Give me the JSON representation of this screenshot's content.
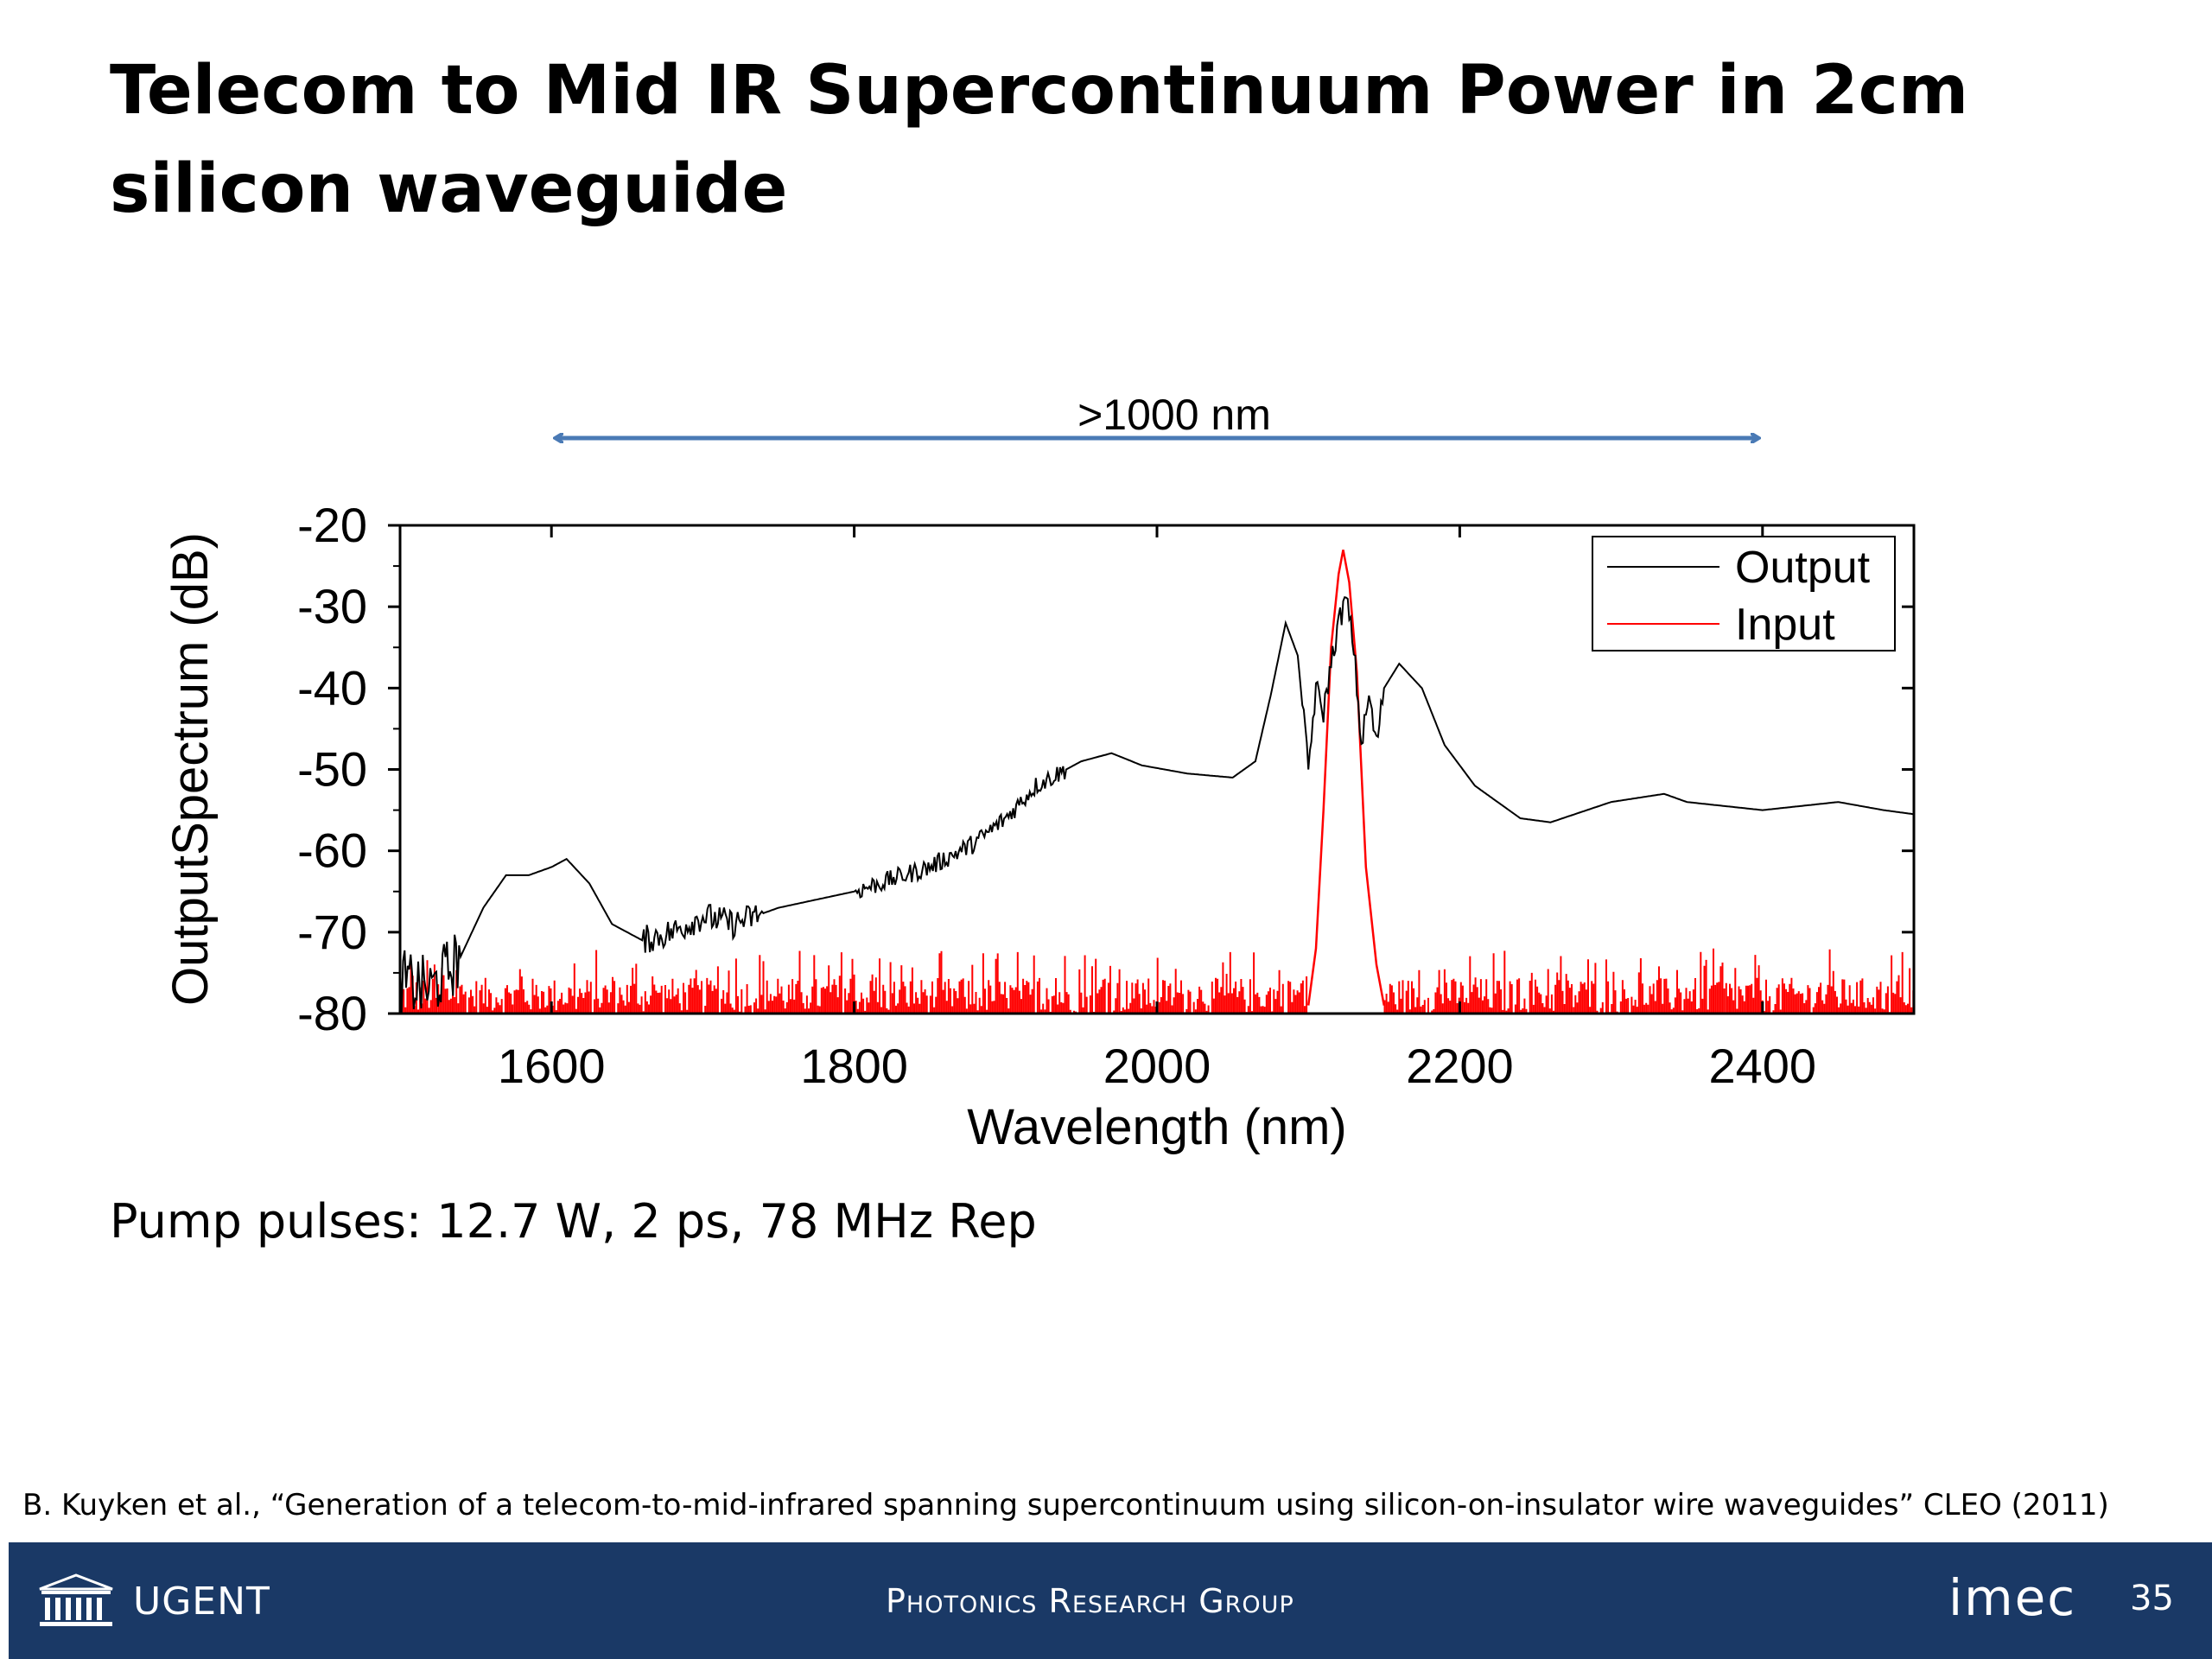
{
  "slide": {
    "title": "Telecom to Mid IR Supercontinuum Power in 2cm silicon waveguide",
    "pump_text": "Pump pulses: 12.7 W, 2 ps, 78 MHz Rep",
    "citation": "B. Kuyken et al., “Generation of a telecom-to-mid-infrared spanning supercontinuum using silicon-on-insulator wire waveguides” CLEO (2011)",
    "span_label": ">1000 nm",
    "span_range": [
      1600,
      2400
    ]
  },
  "footer": {
    "ugent_label": "UGENT",
    "group_label": "Photonics Research Group",
    "imec_label": "imec",
    "page_number": "35"
  },
  "chart_data": {
    "type": "line",
    "xlabel": "Wavelength (nm)",
    "ylabel": "OutputSpectrum (dB)",
    "xlim": [
      1500,
      2500
    ],
    "ylim": [
      -80,
      -20
    ],
    "xticks": [
      1600,
      1800,
      2000,
      2200,
      2400
    ],
    "yticks": [
      -20,
      -30,
      -40,
      -50,
      -60,
      -70,
      -80
    ],
    "legend_position": "top-right",
    "series": [
      {
        "name": "Output",
        "color": "#000000",
        "points": [
          [
            1500,
            -76
          ],
          [
            1520,
            -77
          ],
          [
            1540,
            -73
          ],
          [
            1555,
            -67
          ],
          [
            1570,
            -63
          ],
          [
            1585,
            -63
          ],
          [
            1600,
            -62
          ],
          [
            1610,
            -61
          ],
          [
            1625,
            -64
          ],
          [
            1640,
            -69
          ],
          [
            1660,
            -71
          ],
          [
            1680,
            -70
          ],
          [
            1700,
            -68
          ],
          [
            1720,
            -69
          ],
          [
            1750,
            -67
          ],
          [
            1800,
            -65
          ],
          [
            1850,
            -62
          ],
          [
            1880,
            -59
          ],
          [
            1900,
            -56
          ],
          [
            1920,
            -52
          ],
          [
            1950,
            -49
          ],
          [
            1970,
            -48
          ],
          [
            1990,
            -49.5
          ],
          [
            2020,
            -50.5
          ],
          [
            2050,
            -51
          ],
          [
            2065,
            -49
          ],
          [
            2075,
            -41
          ],
          [
            2085,
            -32
          ],
          [
            2093,
            -36
          ],
          [
            2100,
            -50
          ],
          [
            2105,
            -40
          ],
          [
            2110,
            -43
          ],
          [
            2115,
            -37
          ],
          [
            2120,
            -32
          ],
          [
            2125,
            -29
          ],
          [
            2130,
            -35
          ],
          [
            2135,
            -47
          ],
          [
            2140,
            -41
          ],
          [
            2145,
            -47
          ],
          [
            2150,
            -40
          ],
          [
            2160,
            -37
          ],
          [
            2175,
            -40
          ],
          [
            2190,
            -47
          ],
          [
            2210,
            -52
          ],
          [
            2240,
            -56
          ],
          [
            2260,
            -56.5
          ],
          [
            2300,
            -54
          ],
          [
            2335,
            -53
          ],
          [
            2350,
            -54
          ],
          [
            2400,
            -55
          ],
          [
            2450,
            -54
          ],
          [
            2480,
            -55
          ],
          [
            2500,
            -55.5
          ]
        ]
      },
      {
        "name": "Input",
        "color": "#ff0000",
        "points": [
          [
            2100,
            -79
          ],
          [
            2105,
            -72
          ],
          [
            2110,
            -55
          ],
          [
            2115,
            -35
          ],
          [
            2120,
            -26
          ],
          [
            2123,
            -23
          ],
          [
            2127,
            -27
          ],
          [
            2132,
            -38
          ],
          [
            2138,
            -62
          ],
          [
            2145,
            -74
          ],
          [
            2150,
            -79
          ]
        ],
        "noise_floor_db": -80,
        "noise_peak_db": -72
      }
    ]
  }
}
